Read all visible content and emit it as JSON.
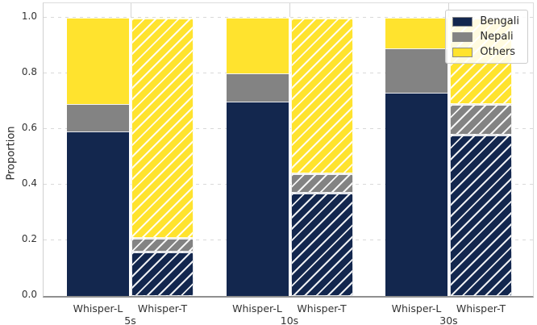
{
  "chart_data": {
    "type": "bar",
    "stacked": true,
    "title": "",
    "xlabel": "",
    "ylabel": "Proportion",
    "ylim": [
      0,
      1.0
    ],
    "yticks": [
      "0.0",
      "0.2",
      "0.4",
      "0.6",
      "0.8",
      "1.0"
    ],
    "grid": "horizontal-dashed, vertical stubs at group centers",
    "legend_position": "upper-right",
    "hatch_style": "Whisper-T bars drawn with white / diagonal hatching",
    "series": [
      {
        "name": "Bengali",
        "color": "#13274e"
      },
      {
        "name": "Nepali",
        "color": "#838383"
      },
      {
        "name": "Others",
        "color": "#ffe32e"
      }
    ],
    "groups": [
      {
        "duration": "5s",
        "bars": [
          {
            "model": "Whisper-L",
            "hatched": false,
            "values": {
              "Bengali": 0.59,
              "Nepali": 0.1,
              "Others": 0.31
            }
          },
          {
            "model": "Whisper-T",
            "hatched": true,
            "values": {
              "Bengali": 0.16,
              "Nepali": 0.05,
              "Others": 0.79
            }
          }
        ]
      },
      {
        "duration": "10s",
        "bars": [
          {
            "model": "Whisper-L",
            "hatched": false,
            "values": {
              "Bengali": 0.7,
              "Nepali": 0.1,
              "Others": 0.2
            }
          },
          {
            "model": "Whisper-T",
            "hatched": true,
            "values": {
              "Bengali": 0.37,
              "Nepali": 0.07,
              "Others": 0.56
            }
          }
        ]
      },
      {
        "duration": "30s",
        "bars": [
          {
            "model": "Whisper-L",
            "hatched": false,
            "values": {
              "Bengali": 0.73,
              "Nepali": 0.16,
              "Others": 0.11
            }
          },
          {
            "model": "Whisper-T",
            "hatched": true,
            "values": {
              "Bengali": 0.58,
              "Nepali": 0.11,
              "Others": 0.31
            }
          }
        ]
      }
    ]
  }
}
